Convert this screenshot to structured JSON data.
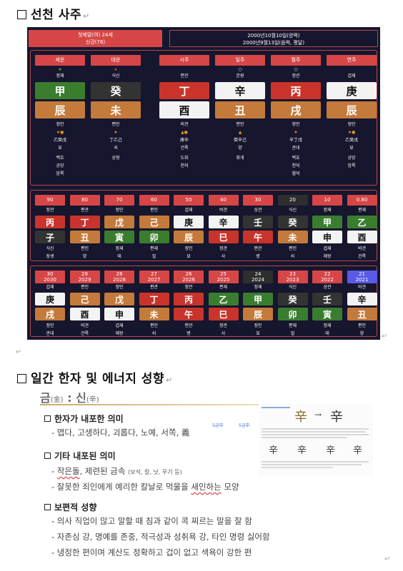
{
  "section1": {
    "title": "선천 사주"
  },
  "profile": {
    "name_line": "첫제말(여) 24세",
    "sub_line": "신강(76)",
    "date_solar": "2000년10월10일(양력)",
    "date_lunar": "2000년9월13일(음력, 평달)"
  },
  "pillars_left": [
    {
      "header": "세운",
      "mark": "★",
      "mark_color": "green",
      "top_label": "정재",
      "stem": "甲",
      "stem_color": "green",
      "branch": "辰",
      "branch_color": "yellow",
      "bottom_label": "정인",
      "star2": "★●",
      "hidden": "乙癸戊",
      "stage": "묘",
      "extra1": "백호",
      "extra2": "공망",
      "extra3": "암록"
    },
    {
      "header": "대운",
      "mark": "★",
      "mark_color": "red",
      "top_label": "식신",
      "stem": "癸",
      "stem_color": "dark",
      "branch": "未",
      "branch_color": "yellow",
      "bottom_label": "편인",
      "star2": "★",
      "hidden": "丁乙己",
      "stage": "쇠",
      "extra1": "상형",
      "extra2": "",
      "extra3": ""
    }
  ],
  "pillars_right": [
    {
      "header": "시주",
      "mark": "",
      "top_label": "편관",
      "stem": "丁",
      "stem_color": "red",
      "branch": "酉",
      "branch_color": "white",
      "bottom_label": "비견",
      "star2": "▲●",
      "hidden": "庚辛",
      "stage": "건록",
      "extra1": "도화",
      "extra2": "천의",
      "extra3": ""
    },
    {
      "header": "일주",
      "mark": "○",
      "top_label": "본원",
      "stem": "辛",
      "stem_color": "white",
      "branch": "丑",
      "branch_color": "yellow",
      "bottom_label": "편인",
      "star2": "▲",
      "hidden": "癸辛己",
      "stage": "양",
      "extra1": "화개",
      "extra2": "",
      "extra3": ""
    },
    {
      "header": "월주",
      "mark": "○",
      "top_label": "정관",
      "stem": "丙",
      "stem_color": "red",
      "branch": "戌",
      "branch_color": "yellow",
      "bottom_label": "정인",
      "star2": "★",
      "hidden": "辛丁戊",
      "stage": "관대",
      "extra1": "백호",
      "extra2": "천덕",
      "extra3": "월덕"
    },
    {
      "header": "연주",
      "mark": "",
      "top_label": "겁재",
      "stem": "庚",
      "stem_color": "white",
      "branch": "辰",
      "branch_color": "yellow",
      "bottom_label": "정인",
      "star2": "★●",
      "hidden": "乙癸戊",
      "stage": "묘",
      "extra1": "공망",
      "extra2": "암록",
      "extra3": ""
    }
  ],
  "daeun": [
    {
      "age": "90",
      "top": "정관",
      "stem": "丙",
      "stem_color": "red",
      "branch": "子",
      "branch_color": "dark",
      "b1": "식신",
      "b2": "장생"
    },
    {
      "age": "80",
      "top": "편관",
      "stem": "丁",
      "stem_color": "red",
      "branch": "丑",
      "branch_color": "yellow",
      "b1": "편인",
      "b2": "양"
    },
    {
      "age": "70",
      "top": "정인",
      "stem": "戊",
      "stem_color": "yellow",
      "branch": "寅",
      "branch_color": "green",
      "b1": "정재",
      "b2": "태"
    },
    {
      "age": "60",
      "top": "편인",
      "stem": "己",
      "stem_color": "yellow",
      "branch": "卯",
      "branch_color": "green",
      "b1": "편재",
      "b2": "절"
    },
    {
      "age": "50",
      "top": "겁재",
      "stem": "庚",
      "stem_color": "white",
      "branch": "辰",
      "branch_color": "yellow",
      "b1": "정인",
      "b2": "묘"
    },
    {
      "age": "40",
      "top": "비견",
      "stem": "辛",
      "stem_color": "white",
      "branch": "巳",
      "branch_color": "red",
      "b1": "정관",
      "b2": "사"
    },
    {
      "age": "30",
      "top": "상관",
      "stem": "壬",
      "stem_color": "dark",
      "branch": "午",
      "branch_color": "red",
      "b1": "편관",
      "b2": "병"
    },
    {
      "age": "20",
      "top": "식신",
      "stem": "癸",
      "stem_color": "dark",
      "branch": "未",
      "branch_color": "yellow",
      "b1": "편인",
      "b2": "쇠"
    },
    {
      "age": "10",
      "top": "정재",
      "stem": "甲",
      "stem_color": "green",
      "branch": "申",
      "branch_color": "white",
      "b1": "겁재",
      "b2": "제왕"
    },
    {
      "age": "0.80",
      "top": "편재",
      "stem": "乙",
      "stem_color": "green",
      "branch": "酉",
      "branch_color": "white",
      "b1": "비견",
      "b2": "건록"
    }
  ],
  "seun": [
    {
      "age": "30",
      "year": "2030",
      "top": "겁재",
      "stem": "庚",
      "stem_color": "white",
      "branch": "戌",
      "branch_color": "yellow",
      "b1": "정인",
      "b2": "관대"
    },
    {
      "age": "29",
      "year": "2029",
      "top": "편인",
      "stem": "己",
      "stem_color": "yellow",
      "branch": "酉",
      "branch_color": "white",
      "b1": "비견",
      "b2": "건록"
    },
    {
      "age": "28",
      "year": "2028",
      "top": "정인",
      "stem": "戊",
      "stem_color": "yellow",
      "branch": "申",
      "branch_color": "white",
      "b1": "겁재",
      "b2": "제왕"
    },
    {
      "age": "27",
      "year": "2027",
      "top": "편관",
      "stem": "丁",
      "stem_color": "red",
      "branch": "未",
      "branch_color": "yellow",
      "b1": "편인",
      "b2": "쇠"
    },
    {
      "age": "26",
      "year": "2026",
      "top": "정관",
      "stem": "丙",
      "stem_color": "red",
      "branch": "午",
      "branch_color": "red",
      "b1": "편관",
      "b2": "병"
    },
    {
      "age": "25",
      "year": "2025",
      "top": "편재",
      "stem": "乙",
      "stem_color": "green",
      "branch": "巳",
      "branch_color": "red",
      "b1": "정관",
      "b2": "사"
    },
    {
      "age": "24",
      "year": "2024",
      "top": "정재",
      "stem": "甲",
      "stem_color": "green",
      "branch": "辰",
      "branch_color": "yellow",
      "b1": "정인",
      "b2": "묘"
    },
    {
      "age": "23",
      "year": "2023",
      "top": "식신",
      "stem": "癸",
      "stem_color": "dark",
      "branch": "卯",
      "branch_color": "green",
      "b1": "편재",
      "b2": "절"
    },
    {
      "age": "22",
      "year": "2022",
      "top": "상관",
      "stem": "壬",
      "stem_color": "dark",
      "branch": "寅",
      "branch_color": "green",
      "b1": "정재",
      "b2": "태"
    },
    {
      "age": "21",
      "year": "2021",
      "top": "비견",
      "stem": "辛",
      "stem_color": "white",
      "branch": "丑",
      "branch_color": "yellow",
      "b1": "편인",
      "b2": "양"
    }
  ],
  "section2": {
    "title": "일간 한자 및 에너지 성향",
    "heading_main": "금",
    "heading_main_hanja": "(金)",
    "heading_sep": " : ",
    "heading_sub": "신",
    "heading_sub_hanja": "(辛)",
    "block1_title": "한자가 내포한 의미",
    "block1_line": "- 맵다, 고생하다, 괴롭다, 노예, 서쪽, 義",
    "block1_sup1": "5급中",
    "block1_sup2": "5급中",
    "block2_title": "기타 내포된 의미",
    "block2_line1_prefix": "- ",
    "block2_line1_a": "작은돌",
    "block2_line1_b": ", 제련된 금속",
    "block2_line1_small": "(보석, 칼, 낫, 무기 등)",
    "block2_line2_prefix": "- 잘못한 죄인에게 예리한 칼날로 먹물을 ",
    "block2_line2_wavy": "새인하는",
    "block2_line2_suffix": " 모양",
    "block3_title": "보편적 성향",
    "block3_lines": [
      "- 의사 직업이 많고 말할 때 침과 같이 콕 찌르는 말을 잘 함",
      "- 자존심 강, 명예를 존중, 적극성과 성취욕 강, 타인 명령 싫어함",
      "- 냉정한 편이며 계산도 정확하고 겁이 없고 색욕이 강한 편"
    ],
    "ref_glyphs": [
      "辛",
      "辛",
      "辛",
      "辛"
    ],
    "ref_arrow": "→"
  }
}
